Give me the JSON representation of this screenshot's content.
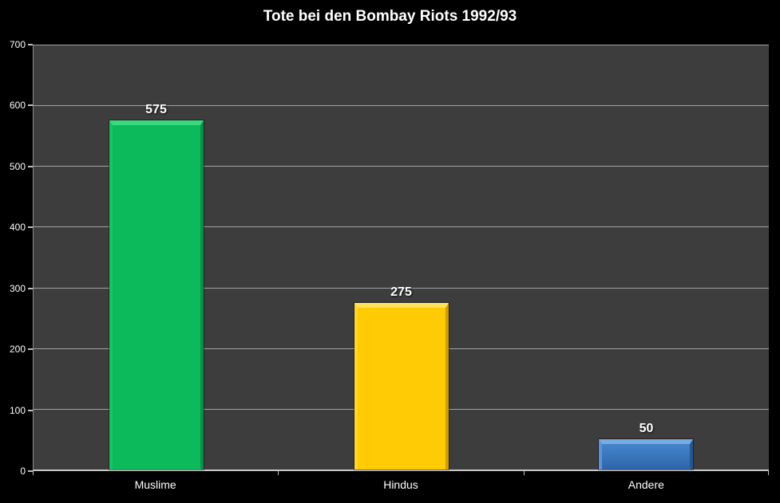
{
  "title": "Tote bei den Bombay Riots 1992/93",
  "colors": {
    "background": "#000000",
    "plot_background": "#3d3d3d",
    "gridline": "#a2a2a2",
    "axis_line": "#c8c8c8",
    "text": "#ffffff"
  },
  "chart_data": {
    "type": "bar",
    "title": "Tote bei den Bombay Riots 1992/93",
    "categories": [
      "Muslime",
      "Hindus",
      "Andere"
    ],
    "values": [
      575,
      275,
      50
    ],
    "value_labels": [
      "575",
      "275",
      "50"
    ],
    "xlabel": "",
    "ylabel": "",
    "ylim": [
      0,
      700
    ],
    "yticks": [
      0,
      100,
      200,
      300,
      400,
      500,
      600,
      700
    ],
    "grid": "horizontal",
    "legend": "none",
    "bar_colors": [
      {
        "name": "green",
        "main": "#0cba5b",
        "top": "#3bd97f",
        "left": "#17c465",
        "right": "#089048"
      },
      {
        "name": "gold",
        "main": "#ffcb05",
        "top": "#ffe25c",
        "left": "#ffd52e",
        "right": "#cc9e00"
      },
      {
        "name": "blue",
        "main": "#4584cc",
        "main_bottom": "#2e65a9",
        "top": "#79abdf",
        "left": "#5e94d5",
        "right": "#24568f"
      }
    ]
  }
}
